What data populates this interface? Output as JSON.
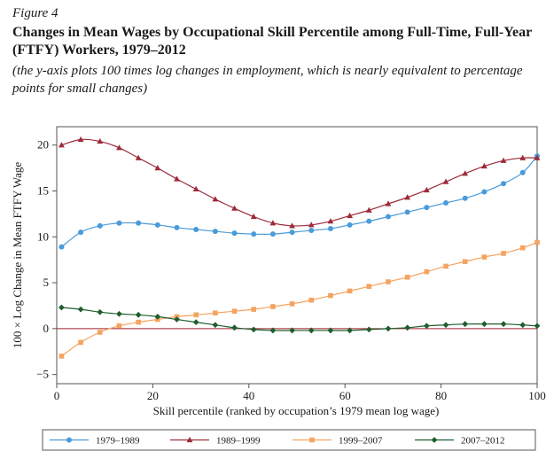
{
  "figure_label": "Figure 4",
  "title": "Changes in Mean Wages by Occupational Skill Percentile among Full-Time, Full-Year (FTFY) Workers, 1979–2012",
  "note": "(the y-axis plots 100 times log changes in employment, which is nearly equivalent to percentage points for small changes)",
  "chart_data": {
    "type": "line",
    "xlabel": "Skill percentile (ranked by occupation’s 1979 mean log wage)",
    "ylabel": "100 × Log Change in Mean FTFY Wage",
    "xlim": [
      0,
      100
    ],
    "ylim": [
      -6,
      22
    ],
    "xticks": [
      0,
      20,
      40,
      60,
      80,
      100
    ],
    "yticks": [
      -5,
      0,
      5,
      10,
      15,
      20
    ],
    "zero_line": true,
    "grid": false,
    "legend_position": "bottom",
    "series": [
      {
        "name": "1979–1989",
        "color": "#4a9bd9",
        "marker": "circle",
        "x": [
          1,
          5,
          9,
          13,
          17,
          21,
          25,
          29,
          33,
          37,
          41,
          45,
          49,
          53,
          57,
          61,
          65,
          69,
          73,
          77,
          81,
          85,
          89,
          93,
          97,
          100
        ],
        "y": [
          8.9,
          10.5,
          11.2,
          11.5,
          11.5,
          11.3,
          11.0,
          10.8,
          10.6,
          10.4,
          10.3,
          10.3,
          10.5,
          10.7,
          10.9,
          11.3,
          11.7,
          12.2,
          12.7,
          13.2,
          13.7,
          14.2,
          14.9,
          15.8,
          17.0,
          18.8
        ]
      },
      {
        "name": "1989–1999",
        "color": "#9e2a3a",
        "marker": "triangle",
        "x": [
          1,
          5,
          9,
          13,
          17,
          21,
          25,
          29,
          33,
          37,
          41,
          45,
          49,
          53,
          57,
          61,
          65,
          69,
          73,
          77,
          81,
          85,
          89,
          93,
          97,
          100
        ],
        "y": [
          20.0,
          20.6,
          20.4,
          19.7,
          18.6,
          17.5,
          16.3,
          15.2,
          14.1,
          13.1,
          12.2,
          11.5,
          11.2,
          11.3,
          11.7,
          12.3,
          12.9,
          13.6,
          14.3,
          15.1,
          16.0,
          16.9,
          17.7,
          18.3,
          18.6,
          18.6
        ]
      },
      {
        "name": "1999–2007",
        "color": "#f4a460",
        "marker": "square",
        "x": [
          1,
          5,
          9,
          13,
          17,
          21,
          25,
          29,
          33,
          37,
          41,
          45,
          49,
          53,
          57,
          61,
          65,
          69,
          73,
          77,
          81,
          85,
          89,
          93,
          97,
          100
        ],
        "y": [
          -3.0,
          -1.5,
          -0.4,
          0.3,
          0.7,
          1.0,
          1.3,
          1.5,
          1.7,
          1.9,
          2.1,
          2.4,
          2.7,
          3.1,
          3.6,
          4.1,
          4.6,
          5.1,
          5.6,
          6.2,
          6.8,
          7.3,
          7.8,
          8.2,
          8.8,
          9.4
        ]
      },
      {
        "name": "2007–2012",
        "color": "#1f5e2e",
        "marker": "diamond",
        "x": [
          1,
          5,
          9,
          13,
          17,
          21,
          25,
          29,
          33,
          37,
          41,
          45,
          49,
          53,
          57,
          61,
          65,
          69,
          73,
          77,
          81,
          85,
          89,
          93,
          97,
          100
        ],
        "y": [
          2.3,
          2.1,
          1.8,
          1.6,
          1.5,
          1.3,
          1.0,
          0.7,
          0.4,
          0.1,
          -0.1,
          -0.2,
          -0.2,
          -0.2,
          -0.2,
          -0.2,
          -0.1,
          0.0,
          0.1,
          0.3,
          0.4,
          0.5,
          0.5,
          0.5,
          0.4,
          0.3
        ]
      }
    ]
  }
}
